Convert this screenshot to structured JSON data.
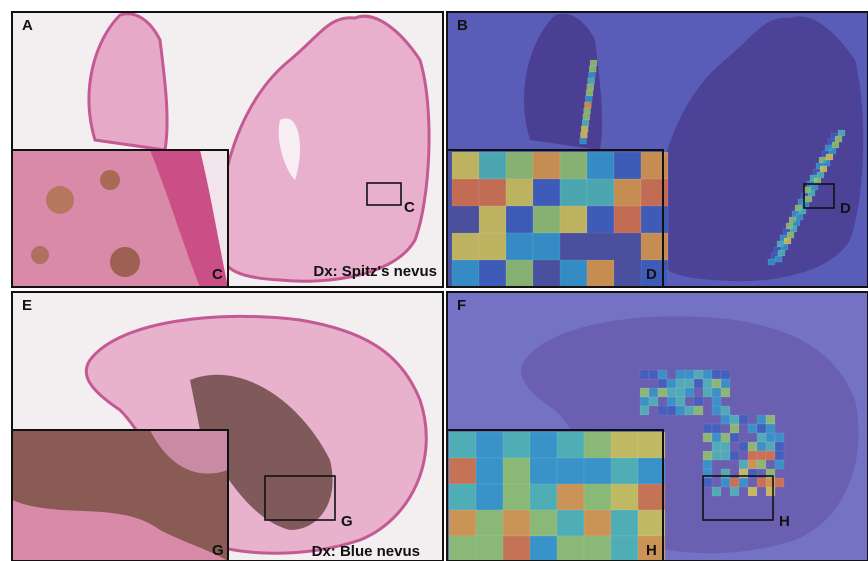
{
  "panels": [
    {
      "label": "A",
      "diagnosis": "Dx: Spitz's nevus",
      "box_label": "C",
      "inset_label": "C"
    },
    {
      "label": "B",
      "box_label": "D",
      "inset_label": "D"
    },
    {
      "label": "E",
      "diagnosis": "Dx: Blue nevus",
      "box_label": "G",
      "inset_label": "G"
    },
    {
      "label": "F",
      "box_label": "H",
      "inset_label": "H"
    }
  ]
}
